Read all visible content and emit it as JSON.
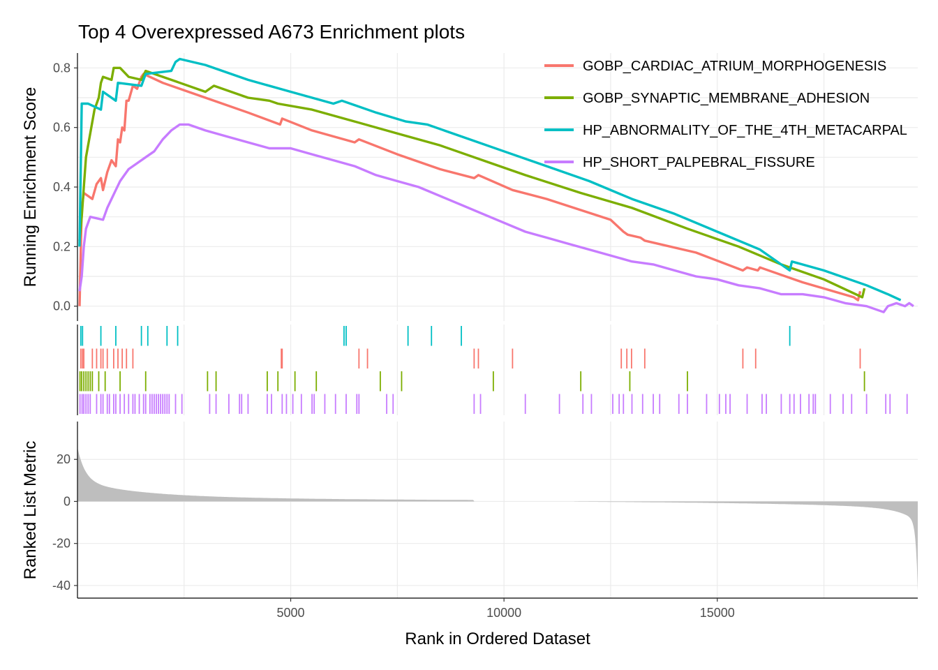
{
  "chart_data": {
    "type": "line",
    "title": "Top 4 Overexpressed A673 Enrichment plots",
    "xlabel": "Rank in Ordered Dataset",
    "ylabel_top": "Running Enrichment Score",
    "ylabel_bottom": "Ranked List Metric",
    "xlim": [
      1,
      19700
    ],
    "x_ticks": [
      5000,
      10000,
      15000
    ],
    "x_tick_labels": [
      "5000",
      "10000",
      "15000"
    ],
    "top_panel": {
      "ylim": [
        -0.05,
        0.85
      ],
      "y_ticks": [
        0.0,
        0.2,
        0.4,
        0.6,
        0.8
      ],
      "y_tick_labels": [
        "0.0",
        "0.2",
        "0.4",
        "0.6",
        "0.8"
      ]
    },
    "bottom_panel": {
      "ylim": [
        -46,
        38
      ],
      "y_ticks": [
        20,
        0,
        -20,
        -40
      ],
      "y_tick_labels": [
        "20",
        "0",
        "-20",
        "-40"
      ],
      "fill_color": "#bebebe",
      "gap_x": [
        9300,
        11650
      ]
    },
    "legend": {
      "position": "top-right"
    },
    "series": [
      {
        "name": "GOBP_CARDIAC_ATRIUM_MORPHOGENESIS",
        "color": "#f8766d",
        "points": [
          [
            50,
            0.0
          ],
          [
            100,
            0.33
          ],
          [
            150,
            0.38
          ],
          [
            350,
            0.36
          ],
          [
            450,
            0.41
          ],
          [
            550,
            0.43
          ],
          [
            600,
            0.39
          ],
          [
            700,
            0.45
          ],
          [
            800,
            0.49
          ],
          [
            900,
            0.47
          ],
          [
            950,
            0.56
          ],
          [
            1000,
            0.55
          ],
          [
            1050,
            0.6
          ],
          [
            1100,
            0.59
          ],
          [
            1150,
            0.69
          ],
          [
            1200,
            0.69
          ],
          [
            1300,
            0.74
          ],
          [
            1400,
            0.73
          ],
          [
            1500,
            0.77
          ],
          [
            1550,
            0.78
          ],
          [
            2000,
            0.75
          ],
          [
            3000,
            0.7
          ],
          [
            4000,
            0.65
          ],
          [
            4750,
            0.61
          ],
          [
            4800,
            0.63
          ],
          [
            5500,
            0.59
          ],
          [
            6500,
            0.55
          ],
          [
            6600,
            0.56
          ],
          [
            7500,
            0.51
          ],
          [
            8500,
            0.46
          ],
          [
            9300,
            0.43
          ],
          [
            9400,
            0.44
          ],
          [
            10200,
            0.39
          ],
          [
            11000,
            0.36
          ],
          [
            12500,
            0.29
          ],
          [
            12800,
            0.25
          ],
          [
            12900,
            0.24
          ],
          [
            13200,
            0.23
          ],
          [
            13300,
            0.22
          ],
          [
            14500,
            0.18
          ],
          [
            15600,
            0.12
          ],
          [
            15700,
            0.13
          ],
          [
            15950,
            0.12
          ],
          [
            16000,
            0.13
          ],
          [
            17000,
            0.08
          ],
          [
            18200,
            0.03
          ],
          [
            18300,
            0.02
          ],
          [
            18350,
            0.05
          ]
        ]
      },
      {
        "name": "GOBP_SYNAPTIC_MEMBRANE_ADHESION",
        "color": "#7cae00",
        "points": [
          [
            50,
            0.22
          ],
          [
            100,
            0.3
          ],
          [
            150,
            0.4
          ],
          [
            200,
            0.5
          ],
          [
            300,
            0.58
          ],
          [
            400,
            0.66
          ],
          [
            500,
            0.7
          ],
          [
            550,
            0.75
          ],
          [
            600,
            0.77
          ],
          [
            800,
            0.76
          ],
          [
            850,
            0.8
          ],
          [
            1000,
            0.8
          ],
          [
            1200,
            0.77
          ],
          [
            1500,
            0.76
          ],
          [
            1600,
            0.79
          ],
          [
            2000,
            0.77
          ],
          [
            3000,
            0.72
          ],
          [
            3200,
            0.74
          ],
          [
            4000,
            0.7
          ],
          [
            4500,
            0.69
          ],
          [
            4700,
            0.68
          ],
          [
            5500,
            0.66
          ],
          [
            6500,
            0.62
          ],
          [
            7500,
            0.58
          ],
          [
            8500,
            0.54
          ],
          [
            9700,
            0.48
          ],
          [
            10500,
            0.44
          ],
          [
            11800,
            0.38
          ],
          [
            13000,
            0.33
          ],
          [
            14300,
            0.26
          ],
          [
            15500,
            0.2
          ],
          [
            16500,
            0.14
          ],
          [
            17500,
            0.09
          ],
          [
            18400,
            0.03
          ],
          [
            18450,
            0.06
          ]
        ]
      },
      {
        "name": "HP_ABNORMALITY_OF_THE_4TH_METACARPAL",
        "color": "#00bfc4",
        "points": [
          [
            50,
            0.2
          ],
          [
            100,
            0.68
          ],
          [
            250,
            0.68
          ],
          [
            550,
            0.66
          ],
          [
            600,
            0.72
          ],
          [
            900,
            0.69
          ],
          [
            950,
            0.75
          ],
          [
            1500,
            0.74
          ],
          [
            1600,
            0.78
          ],
          [
            2200,
            0.79
          ],
          [
            2300,
            0.82
          ],
          [
            2400,
            0.83
          ],
          [
            3000,
            0.81
          ],
          [
            4000,
            0.76
          ],
          [
            5000,
            0.72
          ],
          [
            6000,
            0.68
          ],
          [
            6200,
            0.69
          ],
          [
            7000,
            0.65
          ],
          [
            7700,
            0.62
          ],
          [
            8200,
            0.61
          ],
          [
            9000,
            0.57
          ],
          [
            10000,
            0.52
          ],
          [
            11000,
            0.47
          ],
          [
            12000,
            0.42
          ],
          [
            13000,
            0.36
          ],
          [
            14000,
            0.31
          ],
          [
            15000,
            0.25
          ],
          [
            16000,
            0.19
          ],
          [
            16700,
            0.12
          ],
          [
            16750,
            0.15
          ],
          [
            17500,
            0.12
          ],
          [
            18500,
            0.07
          ],
          [
            19000,
            0.04
          ],
          [
            19300,
            0.02
          ]
        ]
      },
      {
        "name": "HP_SHORT_PALPEBRAL_FISSURE",
        "color": "#c77cff",
        "points": [
          [
            50,
            0.05
          ],
          [
            100,
            0.1
          ],
          [
            150,
            0.2
          ],
          [
            200,
            0.26
          ],
          [
            300,
            0.3
          ],
          [
            600,
            0.29
          ],
          [
            700,
            0.33
          ],
          [
            800,
            0.36
          ],
          [
            900,
            0.39
          ],
          [
            1000,
            0.42
          ],
          [
            1100,
            0.44
          ],
          [
            1200,
            0.46
          ],
          [
            1400,
            0.48
          ],
          [
            1600,
            0.5
          ],
          [
            1800,
            0.52
          ],
          [
            2000,
            0.56
          ],
          [
            2200,
            0.59
          ],
          [
            2400,
            0.61
          ],
          [
            2600,
            0.61
          ],
          [
            3000,
            0.59
          ],
          [
            3500,
            0.57
          ],
          [
            4000,
            0.55
          ],
          [
            4500,
            0.53
          ],
          [
            5000,
            0.53
          ],
          [
            5500,
            0.51
          ],
          [
            6000,
            0.49
          ],
          [
            6500,
            0.47
          ],
          [
            7000,
            0.44
          ],
          [
            7500,
            0.42
          ],
          [
            8000,
            0.4
          ],
          [
            8500,
            0.37
          ],
          [
            9000,
            0.34
          ],
          [
            9500,
            0.31
          ],
          [
            10000,
            0.28
          ],
          [
            10500,
            0.25
          ],
          [
            11000,
            0.23
          ],
          [
            11500,
            0.21
          ],
          [
            12000,
            0.19
          ],
          [
            12500,
            0.17
          ],
          [
            13000,
            0.15
          ],
          [
            13500,
            0.14
          ],
          [
            14000,
            0.12
          ],
          [
            14500,
            0.1
          ],
          [
            15000,
            0.09
          ],
          [
            15500,
            0.07
          ],
          [
            16000,
            0.06
          ],
          [
            16500,
            0.04
          ],
          [
            17000,
            0.04
          ],
          [
            17500,
            0.03
          ],
          [
            18000,
            0.01
          ],
          [
            18500,
            0.0
          ],
          [
            18900,
            -0.02
          ],
          [
            19000,
            0.0
          ],
          [
            19200,
            0.01
          ],
          [
            19400,
            0.0
          ],
          [
            19500,
            0.01
          ],
          [
            19600,
            0.0
          ]
        ]
      }
    ],
    "hits": {
      "GOBP_CARDIAC_ATRIUM_MORPHOGENESIS": [
        80,
        120,
        150,
        350,
        450,
        550,
        600,
        700,
        850,
        950,
        1050,
        1150,
        1300,
        4780,
        4800,
        6600,
        6800,
        9300,
        9400,
        10200,
        12750,
        12880,
        12990,
        13300,
        15600,
        15900,
        18350
      ],
      "GOBP_SYNAPTIC_MEMBRANE_ADHESION": [
        60,
        100,
        150,
        200,
        250,
        300,
        350,
        500,
        650,
        1000,
        1600,
        3050,
        3250,
        4450,
        4700,
        5100,
        5600,
        7100,
        7600,
        9750,
        11800,
        12950,
        14300,
        18450
      ],
      "HP_ABNORMALITY_OF_THE_4TH_METACARPAL": [
        80,
        120,
        550,
        900,
        1500,
        1650,
        2100,
        2350,
        6250,
        6300,
        7750,
        8300,
        9000,
        16700
      ],
      "HP_SHORT_PALPEBRAL_FISSURE": [
        60,
        110,
        150,
        200,
        250,
        300,
        450,
        550,
        600,
        700,
        750,
        850,
        900,
        1000,
        1100,
        1200,
        1300,
        1350,
        1450,
        1550,
        1600,
        1700,
        1750,
        1800,
        1850,
        1900,
        1950,
        2000,
        2050,
        2100,
        2150,
        2300,
        2450,
        3100,
        3250,
        3550,
        3800,
        3850,
        4000,
        4450,
        4550,
        4800,
        4900,
        5050,
        5250,
        5500,
        5550,
        5800,
        6050,
        6300,
        6550,
        6600,
        7250,
        7400,
        9300,
        9450,
        10500,
        11300,
        11850,
        12050,
        12550,
        12700,
        12800,
        13000,
        13250,
        13500,
        13650,
        14100,
        14300,
        14750,
        15050,
        15200,
        15300,
        15700,
        16050,
        16150,
        16500,
        16700,
        16800,
        16950,
        17150,
        17250,
        17300,
        17650,
        17950,
        18150,
        18500,
        18950,
        19050,
        19450
      ]
    }
  }
}
